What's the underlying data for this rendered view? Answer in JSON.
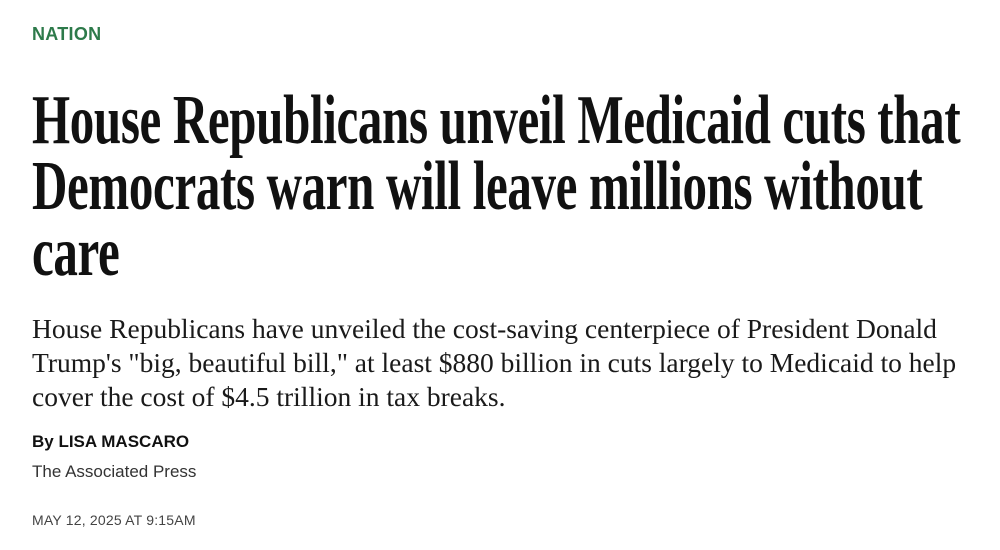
{
  "section": "NATION",
  "headline": "House Republicans unveil Medicaid cuts that Democrats warn will leave millions without care",
  "summary": "House Republicans have unveiled the cost-saving centerpiece of President Donald Trump's \"big, beautiful bill,\" at least $880 billion in cuts largely to Medicaid to help cover the cost of $4.5 trillion in tax breaks.",
  "byline": "By LISA MASCARO",
  "publisher": "The Associated Press",
  "date": "MAY 12, 2025 AT 9:15AM"
}
